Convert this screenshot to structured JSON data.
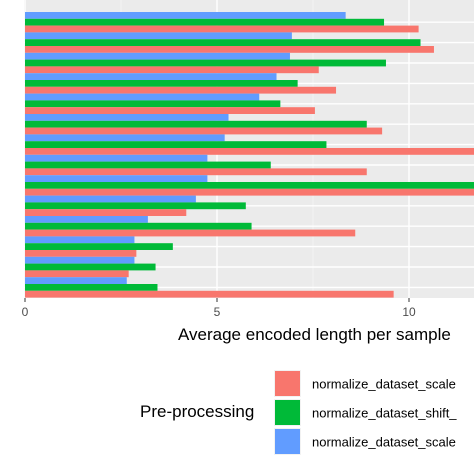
{
  "chart_data": {
    "type": "bar",
    "orientation": "horizontal",
    "xlabel": "Average encoded length per sample",
    "xlim": [
      -0.2,
      11.7
    ],
    "xticks": [
      0,
      5,
      10
    ],
    "grid": true,
    "legend": {
      "title": "Pre-processing",
      "placement": "bottom-right"
    },
    "groups": [
      {
        "values": [
          10.25,
          9.35,
          8.35
        ]
      },
      {
        "values": [
          10.65,
          10.3,
          6.95
        ]
      },
      {
        "values": [
          7.65,
          9.4,
          6.9
        ]
      },
      {
        "values": [
          8.1,
          7.1,
          6.55
        ]
      },
      {
        "values": [
          7.55,
          6.65,
          6.1
        ]
      },
      {
        "values": [
          9.3,
          8.9,
          5.3
        ]
      },
      {
        "values": [
          11.8,
          7.85,
          5.2
        ]
      },
      {
        "values": [
          8.9,
          6.4,
          4.75
        ]
      },
      {
        "values": [
          11.8,
          11.8,
          4.75
        ]
      },
      {
        "values": [
          4.2,
          5.75,
          4.45
        ]
      },
      {
        "values": [
          8.6,
          5.9,
          3.2
        ]
      },
      {
        "values": [
          2.9,
          3.85,
          2.85
        ]
      },
      {
        "values": [
          2.7,
          3.4,
          2.85
        ]
      },
      {
        "values": [
          9.6,
          3.45,
          2.65
        ]
      }
    ],
    "series": [
      {
        "name": "normalize_dataset_scale",
        "color": "#F8766D"
      },
      {
        "name": "normalize_dataset_shift_",
        "color": "#00BA38"
      },
      {
        "name": "normalize_dataset_scale",
        "color": "#619CFF"
      }
    ]
  }
}
